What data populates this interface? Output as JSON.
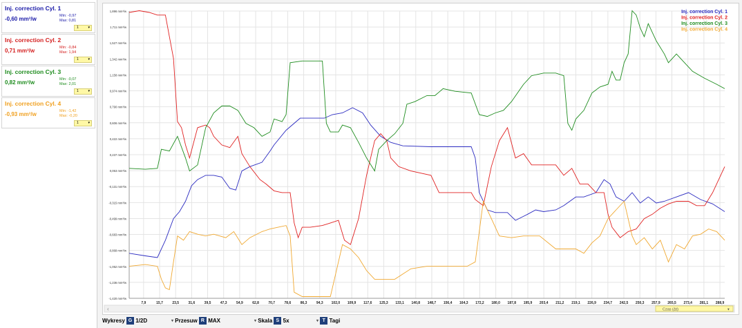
{
  "sensors": [
    {
      "name": "Inj. correction Cyl. 1",
      "value": "-0,60 mm³/w",
      "min": "Min: -0,97",
      "max": "Max: 0,81",
      "sel": "1",
      "color": "#1a1aa8"
    },
    {
      "name": "Inj. correction Cyl. 2",
      "value": "0,71 mm³/w",
      "min": "Min: -0,84",
      "max": "Max: 1,94",
      "sel": "1",
      "color": "#d42020"
    },
    {
      "name": "Inj. correction Cyl. 3",
      "value": "0,82 mm³/w",
      "min": "Min: -0,07",
      "max": "Max: 2,01",
      "sel": "1",
      "color": "#1e8c1e"
    },
    {
      "name": "Inj. correction Cyl. 4",
      "value": "-0,93 mm³/w",
      "min": "Min: -1,42",
      "max": "Max: -0,20",
      "sel": "1",
      "color": "#f0a020"
    }
  ],
  "toolbar": {
    "wykresy": "Wykresy",
    "wykresy_key": "G",
    "wykresy_val": "1/2D",
    "przesuw": "Przesuw",
    "przesuw_key": "R",
    "przesuw_val": "MAX",
    "skala": "Skala",
    "skala_key": "S",
    "skala_val": "5x",
    "tagi_key": "T",
    "tagi": "Tagi",
    "dropdown_glyph": "▾"
  },
  "scroll": {
    "label": "Czas (Δt)",
    "arrow": "‹"
  },
  "icons": {
    "select_arrow": "select-arrow-icon",
    "scroll_left": "scroll-left-icon"
  },
  "chart_data": {
    "type": "line",
    "yticks": [
      "1,896 mm³/w",
      "1,711 mm³/w",
      "1,527 mm³/w",
      "1,342 mm³/w",
      "1,158 mm³/w",
      "0,974 mm³/w",
      "0,790 mm³/w",
      "0,606 mm³/w",
      "0,422 mm³/w",
      "0,237 mm³/w",
      "0,053 mm³/w",
      "-0,131 mm³/w",
      "-0,315 mm³/w",
      "-0,499 mm³/w",
      "-0,683 mm³/w",
      "-0,868 mm³/w",
      "-1,052 mm³/w",
      "-1,236 mm³/w",
      "-1,420 mm³/w"
    ],
    "ylim": [
      -1.42,
      1.896
    ],
    "xticks": [
      "7,9",
      "15,7",
      "23,5",
      "31,6",
      "39,5",
      "47,3",
      "54,9",
      "62,8",
      "70,7",
      "78,6",
      "86,3",
      "94,3",
      "102,0",
      "109,9",
      "117,6",
      "125,3",
      "133,1",
      "140,8",
      "148,7",
      "156,4",
      "164,3",
      "172,2",
      "180,0",
      "187,8",
      "195,9",
      "203,4",
      "211,2",
      "219,1",
      "226,9",
      "234,7",
      "242,5",
      "250,3",
      "257,9",
      "265,5",
      "273,4",
      "281,1",
      "288,9"
    ],
    "xlim": [
      0,
      296
    ],
    "series": [
      {
        "name": "Inj. correction Cyl. 1",
        "color": "#2a2ac0",
        "points": [
          [
            0,
            -0.9
          ],
          [
            8,
            -0.93
          ],
          [
            14,
            -0.95
          ],
          [
            18,
            -0.75
          ],
          [
            22,
            -0.5
          ],
          [
            25,
            -0.42
          ],
          [
            28,
            -0.3
          ],
          [
            31,
            -0.12
          ],
          [
            34,
            -0.05
          ],
          [
            38,
            0.0
          ],
          [
            42,
            0.0
          ],
          [
            46,
            -0.02
          ],
          [
            50,
            -0.15
          ],
          [
            53,
            -0.17
          ],
          [
            56,
            0.05
          ],
          [
            60,
            0.1
          ],
          [
            66,
            0.15
          ],
          [
            70,
            0.28
          ],
          [
            72,
            0.35
          ],
          [
            78,
            0.52
          ],
          [
            85,
            0.66
          ],
          [
            91,
            0.66
          ],
          [
            97,
            0.66
          ],
          [
            101,
            0.7
          ],
          [
            106,
            0.72
          ],
          [
            111,
            0.78
          ],
          [
            116,
            0.72
          ],
          [
            120,
            0.58
          ],
          [
            125,
            0.45
          ],
          [
            130,
            0.38
          ],
          [
            136,
            0.34
          ],
          [
            150,
            0.33
          ],
          [
            170,
            0.33
          ],
          [
            172,
            0.2
          ],
          [
            174,
            -0.2
          ],
          [
            178,
            -0.4
          ],
          [
            182,
            -0.43
          ],
          [
            188,
            -0.43
          ],
          [
            192,
            -0.52
          ],
          [
            198,
            -0.45
          ],
          [
            202,
            -0.4
          ],
          [
            206,
            -0.42
          ],
          [
            212,
            -0.4
          ],
          [
            216,
            -0.35
          ],
          [
            222,
            -0.25
          ],
          [
            226,
            -0.25
          ],
          [
            232,
            -0.2
          ],
          [
            236,
            -0.05
          ],
          [
            239,
            -0.1
          ],
          [
            242,
            -0.25
          ],
          [
            246,
            -0.3
          ],
          [
            250,
            -0.2
          ],
          [
            254,
            -0.32
          ],
          [
            258,
            -0.25
          ],
          [
            262,
            -0.32
          ],
          [
            266,
            -0.3
          ],
          [
            272,
            -0.25
          ],
          [
            278,
            -0.2
          ],
          [
            284,
            -0.28
          ],
          [
            290,
            -0.33
          ],
          [
            296,
            -0.42
          ]
        ]
      },
      {
        "name": "Inj. correction Cyl. 2",
        "color": "#e02020",
        "points": [
          [
            0,
            1.88
          ],
          [
            5,
            1.9
          ],
          [
            10,
            1.88
          ],
          [
            14,
            1.85
          ],
          [
            18,
            1.85
          ],
          [
            20,
            1.6
          ],
          [
            22,
            1.35
          ],
          [
            24,
            0.62
          ],
          [
            26,
            0.55
          ],
          [
            28,
            0.35
          ],
          [
            30,
            0.2
          ],
          [
            34,
            0.55
          ],
          [
            38,
            0.58
          ],
          [
            40,
            0.55
          ],
          [
            42,
            0.45
          ],
          [
            46,
            0.35
          ],
          [
            50,
            0.32
          ],
          [
            54,
            0.45
          ],
          [
            56,
            0.25
          ],
          [
            60,
            0.1
          ],
          [
            65,
            -0.05
          ],
          [
            68,
            -0.1
          ],
          [
            72,
            -0.18
          ],
          [
            76,
            -0.2
          ],
          [
            80,
            -0.2
          ],
          [
            82,
            -0.55
          ],
          [
            84,
            -0.72
          ],
          [
            86,
            -0.6
          ],
          [
            90,
            -0.6
          ],
          [
            96,
            -0.58
          ],
          [
            100,
            -0.55
          ],
          [
            104,
            -0.52
          ],
          [
            107,
            -0.75
          ],
          [
            110,
            -0.8
          ],
          [
            114,
            -0.5
          ],
          [
            118,
            0.0
          ],
          [
            122,
            0.4
          ],
          [
            125,
            0.48
          ],
          [
            128,
            0.4
          ],
          [
            130,
            0.2
          ],
          [
            134,
            0.1
          ],
          [
            140,
            0.05
          ],
          [
            150,
            0.0
          ],
          [
            154,
            -0.2
          ],
          [
            160,
            -0.2
          ],
          [
            170,
            -0.2
          ],
          [
            172,
            -0.28
          ],
          [
            176,
            -0.35
          ],
          [
            180,
            0.1
          ],
          [
            184,
            0.4
          ],
          [
            188,
            0.55
          ],
          [
            192,
            0.2
          ],
          [
            196,
            0.25
          ],
          [
            200,
            0.12
          ],
          [
            206,
            0.12
          ],
          [
            212,
            0.12
          ],
          [
            216,
            0.0
          ],
          [
            220,
            0.08
          ],
          [
            224,
            -0.1
          ],
          [
            228,
            -0.1
          ],
          [
            232,
            -0.2
          ],
          [
            236,
            -0.2
          ],
          [
            238,
            -0.45
          ],
          [
            240,
            -0.6
          ],
          [
            244,
            -0.72
          ],
          [
            248,
            -0.65
          ],
          [
            252,
            -0.62
          ],
          [
            256,
            -0.5
          ],
          [
            260,
            -0.45
          ],
          [
            264,
            -0.38
          ],
          [
            268,
            -0.33
          ],
          [
            272,
            -0.3
          ],
          [
            278,
            -0.3
          ],
          [
            282,
            -0.35
          ],
          [
            286,
            -0.35
          ],
          [
            290,
            -0.2
          ],
          [
            296,
            0.1
          ]
        ]
      },
      {
        "name": "Inj. correction Cyl. 3",
        "color": "#1e8c1e",
        "points": [
          [
            0,
            0.08
          ],
          [
            8,
            0.07
          ],
          [
            14,
            0.08
          ],
          [
            16,
            0.3
          ],
          [
            20,
            0.28
          ],
          [
            24,
            0.45
          ],
          [
            28,
            0.2
          ],
          [
            30,
            0.05
          ],
          [
            34,
            0.12
          ],
          [
            38,
            0.55
          ],
          [
            42,
            0.72
          ],
          [
            46,
            0.8
          ],
          [
            50,
            0.8
          ],
          [
            54,
            0.75
          ],
          [
            58,
            0.6
          ],
          [
            62,
            0.55
          ],
          [
            66,
            0.45
          ],
          [
            70,
            0.5
          ],
          [
            72,
            0.65
          ],
          [
            76,
            0.62
          ],
          [
            78,
            0.7
          ],
          [
            80,
            1.3
          ],
          [
            86,
            1.32
          ],
          [
            92,
            1.32
          ],
          [
            96,
            1.32
          ],
          [
            98,
            0.6
          ],
          [
            100,
            0.5
          ],
          [
            104,
            0.5
          ],
          [
            106,
            0.58
          ],
          [
            110,
            0.55
          ],
          [
            114,
            0.38
          ],
          [
            118,
            0.2
          ],
          [
            122,
            0.05
          ],
          [
            124,
            0.3
          ],
          [
            128,
            0.4
          ],
          [
            132,
            0.48
          ],
          [
            136,
            0.6
          ],
          [
            138,
            0.82
          ],
          [
            142,
            0.85
          ],
          [
            148,
            0.92
          ],
          [
            152,
            0.92
          ],
          [
            156,
            1.0
          ],
          [
            162,
            0.97
          ],
          [
            170,
            0.95
          ],
          [
            174,
            0.7
          ],
          [
            178,
            0.68
          ],
          [
            182,
            0.72
          ],
          [
            186,
            0.75
          ],
          [
            190,
            0.85
          ],
          [
            196,
            1.05
          ],
          [
            200,
            1.15
          ],
          [
            206,
            1.18
          ],
          [
            212,
            1.18
          ],
          [
            216,
            1.15
          ],
          [
            218,
            0.6
          ],
          [
            220,
            0.52
          ],
          [
            222,
            0.65
          ],
          [
            226,
            0.75
          ],
          [
            230,
            0.95
          ],
          [
            234,
            1.02
          ],
          [
            238,
            1.05
          ],
          [
            240,
            1.2
          ],
          [
            242,
            1.1
          ],
          [
            244,
            1.1
          ],
          [
            246,
            1.3
          ],
          [
            248,
            1.4
          ],
          [
            250,
            1.9
          ],
          [
            252,
            1.85
          ],
          [
            254,
            1.7
          ],
          [
            256,
            1.6
          ],
          [
            258,
            1.75
          ],
          [
            262,
            1.55
          ],
          [
            266,
            1.4
          ],
          [
            268,
            1.3
          ],
          [
            272,
            1.4
          ],
          [
            276,
            1.3
          ],
          [
            280,
            1.2
          ],
          [
            286,
            1.12
          ],
          [
            292,
            1.05
          ],
          [
            296,
            1.0
          ]
        ]
      },
      {
        "name": "Inj. correction Cyl. 4",
        "color": "#f0a830",
        "points": [
          [
            0,
            -1.05
          ],
          [
            8,
            -1.03
          ],
          [
            14,
            -1.05
          ],
          [
            16,
            -1.2
          ],
          [
            18,
            -1.3
          ],
          [
            20,
            -1.32
          ],
          [
            22,
            -1.0
          ],
          [
            24,
            -0.7
          ],
          [
            27,
            -0.75
          ],
          [
            30,
            -0.65
          ],
          [
            34,
            -0.68
          ],
          [
            38,
            -0.7
          ],
          [
            42,
            -0.68
          ],
          [
            48,
            -0.72
          ],
          [
            52,
            -0.65
          ],
          [
            56,
            -0.8
          ],
          [
            60,
            -0.72
          ],
          [
            66,
            -0.65
          ],
          [
            70,
            -0.62
          ],
          [
            74,
            -0.6
          ],
          [
            78,
            -0.58
          ],
          [
            80,
            -0.7
          ],
          [
            82,
            -1.35
          ],
          [
            86,
            -1.4
          ],
          [
            92,
            -1.4
          ],
          [
            100,
            -1.4
          ],
          [
            106,
            -0.8
          ],
          [
            110,
            -0.85
          ],
          [
            114,
            -0.95
          ],
          [
            118,
            -1.1
          ],
          [
            122,
            -1.2
          ],
          [
            126,
            -1.2
          ],
          [
            132,
            -1.2
          ],
          [
            140,
            -1.08
          ],
          [
            148,
            -1.05
          ],
          [
            156,
            -1.05
          ],
          [
            168,
            -1.05
          ],
          [
            172,
            -1.0
          ],
          [
            176,
            -0.3
          ],
          [
            180,
            -0.5
          ],
          [
            184,
            -0.7
          ],
          [
            190,
            -0.72
          ],
          [
            196,
            -0.7
          ],
          [
            204,
            -0.7
          ],
          [
            212,
            -0.85
          ],
          [
            216,
            -0.85
          ],
          [
            222,
            -0.85
          ],
          [
            226,
            -0.9
          ],
          [
            230,
            -0.78
          ],
          [
            234,
            -0.7
          ],
          [
            238,
            -0.5
          ],
          [
            242,
            -0.4
          ],
          [
            246,
            -0.3
          ],
          [
            250,
            -0.7
          ],
          [
            252,
            -0.8
          ],
          [
            256,
            -0.72
          ],
          [
            260,
            -0.85
          ],
          [
            264,
            -0.75
          ],
          [
            268,
            -1.0
          ],
          [
            272,
            -0.8
          ],
          [
            276,
            -0.85
          ],
          [
            280,
            -0.7
          ],
          [
            284,
            -0.68
          ],
          [
            288,
            -0.62
          ],
          [
            292,
            -0.65
          ],
          [
            296,
            -0.75
          ]
        ]
      }
    ]
  }
}
